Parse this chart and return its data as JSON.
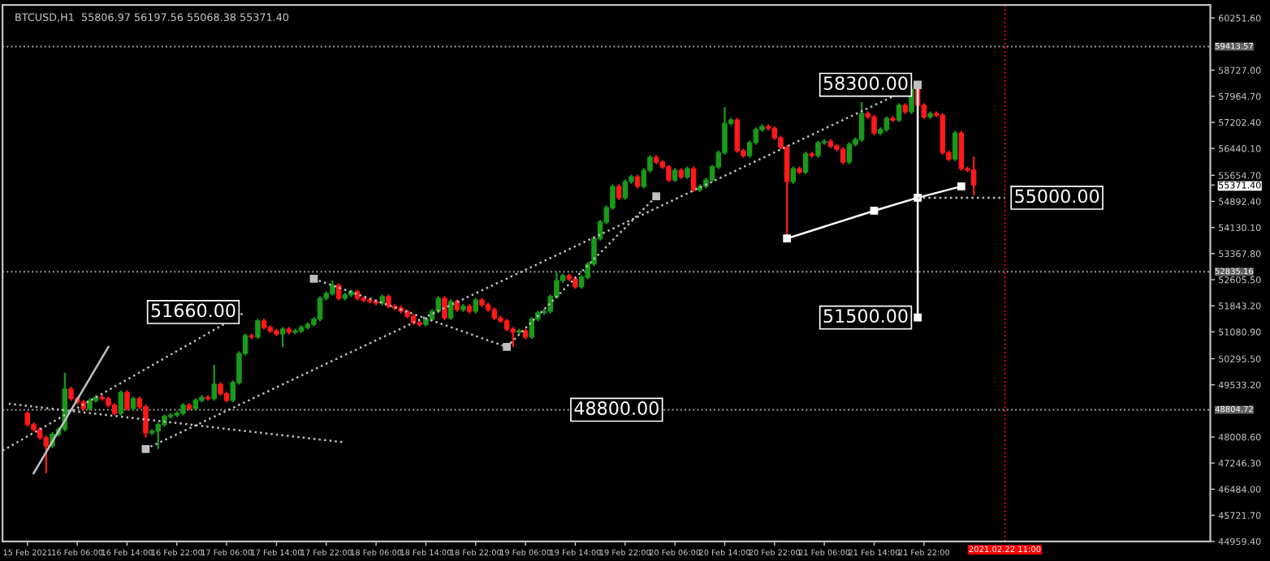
{
  "chart_data": {
    "type": "candlestick",
    "title": "BTCUSD,H1  55806.97 56197.56 55068.38 55371.40",
    "colors": [
      "#ff1a1a",
      "#ff1a1a",
      "#ff1a1a",
      "#ff1a1a",
      "#1a9a1a",
      "#1a9a1a",
      "#1a9a1a",
      "#ff1a1a",
      "#ff1a1a",
      "#ff1a1a",
      "#1a9a1a",
      "#1a9a1a",
      "#ff1a1a",
      "#ff1a1a",
      "#ff1a1a",
      "#1a9a1a",
      "#ff1a1a",
      "#1a9a1a",
      "#ff1a1a",
      "#ff1a1a",
      "#1a9a1a",
      "#1a9a1a",
      "#1a9a1a",
      "#1a9a1a",
      "#1a9a1a",
      "#1a9a1a",
      "#ff1a1a",
      "#1a9a1a",
      "#1a9a1a",
      "#ff1a1a",
      "#1a9a1a",
      "#ff1a1a",
      "#ff1a1a",
      "#1a9a1a",
      "#1a9a1a",
      "#1a9a1a",
      "#ff1a1a",
      "#1a9a1a",
      "#ff1a1a",
      "#ff1a1a",
      "#ff1a1a",
      "#1a9a1a",
      "#ff1a1a",
      "#1a9a1a",
      "#1a9a1a",
      "#1a9a1a",
      "#1a9a1a",
      "#1a9a1a",
      "#1a9a1a",
      "#1a9a1a",
      "#ff1a1a",
      "#1a9a1a",
      "#1a9a1a",
      "#ff1a1a",
      "#ff1a1a",
      "#ff1a1a",
      "#ff1a1a",
      "#1a9a1a",
      "#ff1a1a",
      "#ff1a1a",
      "#ff1a1a",
      "#ff1a1a",
      "#ff1a1a",
      "#ff1a1a",
      "#1a9a1a",
      "#1a9a1a",
      "#1a9a1a",
      "#ff1a1a",
      "#1a9a1a",
      "#ff1a1a",
      "#1a9a1a",
      "#ff1a1a",
      "#1a9a1a",
      "#ff1a1a",
      "#ff1a1a",
      "#ff1a1a",
      "#ff1a1a",
      "#ff1a1a",
      "#ff1a1a",
      "#1a9a1a",
      "#ff1a1a",
      "#1a9a1a",
      "#1a9a1a",
      "#1a9a1a",
      "#1a9a1a",
      "#1a9a1a",
      "#1a9a1a",
      "#ff1a1a",
      "#ff1a1a",
      "#1a9a1a",
      "#1a9a1a",
      "#1a9a1a",
      "#1a9a1a",
      "#1a9a1a",
      "#1a9a1a",
      "#ff1a1a",
      "#1a9a1a",
      "#1a9a1a",
      "#ff1a1a",
      "#1a9a1a",
      "#1a9a1a",
      "#ff1a1a",
      "#ff1a1a",
      "#ff1a1a",
      "#1a9a1a",
      "#ff1a1a",
      "#1a9a1a",
      "#ff1a1a",
      "#1a9a1a",
      "#1a9a1a",
      "#1a9a1a",
      "#1a9a1a",
      "#1a9a1a",
      "#1a9a1a",
      "#ff1a1a",
      "#ff1a1a",
      "#1a9a1a",
      "#1a9a1a",
      "#1a9a1a",
      "#ff1a1a",
      "#ff1a1a",
      "#ff1a1a",
      "#ff1a1a",
      "#1a9a1a",
      "#ff1a1a",
      "#1a9a1a",
      "#ff1a1a",
      "#1a9a1a",
      "#1a9a1a",
      "#ff1a1a",
      "#ff1a1a",
      "#ff1a1a",
      "#1a9a1a",
      "#1a9a1a",
      "#1a9a1a",
      "#ff1a1a",
      "#ff1a1a",
      "#1a9a1a",
      "#1a9a1a",
      "#ff1a1a",
      "#1a9a1a",
      "#ff1a1a",
      "#1a9a1a",
      "#ff1a1a",
      "#ff1a1a",
      "#1a9a1a",
      "#ff1a1a",
      "#ff1a1a",
      "#ff1a1a",
      "#1a9a1a",
      "#ff1a1a",
      "#ff1a1a",
      "#ff1a1a"
    ],
    "x": [
      "2021-02-15T22:00",
      "2021-02-15T23:00",
      "2021-02-16T00:00",
      "2021-02-16T01:00",
      "2021-02-16T02:00",
      "2021-02-16T03:00",
      "2021-02-16T04:00",
      "2021-02-16T05:00",
      "2021-02-16T06:00",
      "2021-02-16T07:00",
      "2021-02-16T08:00",
      "2021-02-16T09:00",
      "2021-02-16T10:00",
      "2021-02-16T11:00",
      "2021-02-16T12:00",
      "2021-02-16T13:00",
      "2021-02-16T14:00",
      "2021-02-16T15:00",
      "2021-02-16T16:00",
      "2021-02-16T17:00",
      "2021-02-16T18:00",
      "2021-02-16T19:00",
      "2021-02-16T20:00",
      "2021-02-16T21:00",
      "2021-02-16T22:00",
      "2021-02-16T23:00",
      "2021-02-17T00:00",
      "2021-02-17T01:00",
      "2021-02-17T02:00",
      "2021-02-17T03:00",
      "2021-02-17T04:00",
      "2021-02-17T05:00",
      "2021-02-17T06:00",
      "2021-02-17T07:00",
      "2021-02-17T08:00",
      "2021-02-17T09:00",
      "2021-02-17T10:00",
      "2021-02-17T11:00",
      "2021-02-17T12:00",
      "2021-02-17T13:00",
      "2021-02-17T14:00",
      "2021-02-17T15:00",
      "2021-02-17T16:00",
      "2021-02-17T17:00",
      "2021-02-17T18:00",
      "2021-02-17T19:00",
      "2021-02-17T20:00",
      "2021-02-17T21:00",
      "2021-02-17T22:00",
      "2021-02-17T23:00",
      "2021-02-18T00:00",
      "2021-02-18T01:00",
      "2021-02-18T02:00",
      "2021-02-18T03:00",
      "2021-02-18T04:00",
      "2021-02-18T05:00",
      "2021-02-18T06:00",
      "2021-02-18T07:00",
      "2021-02-18T08:00",
      "2021-02-18T09:00",
      "2021-02-18T10:00",
      "2021-02-18T11:00",
      "2021-02-18T12:00",
      "2021-02-18T13:00",
      "2021-02-18T14:00",
      "2021-02-18T15:00",
      "2021-02-18T16:00",
      "2021-02-18T17:00",
      "2021-02-18T18:00",
      "2021-02-18T19:00",
      "2021-02-18T20:00",
      "2021-02-18T21:00",
      "2021-02-18T22:00",
      "2021-02-18T23:00",
      "2021-02-19T00:00",
      "2021-02-19T01:00",
      "2021-02-19T02:00",
      "2021-02-19T03:00",
      "2021-02-19T04:00",
      "2021-02-19T05:00",
      "2021-02-19T06:00",
      "2021-02-19T07:00",
      "2021-02-19T08:00",
      "2021-02-19T09:00",
      "2021-02-19T10:00",
      "2021-02-19T11:00",
      "2021-02-19T12:00",
      "2021-02-19T13:00",
      "2021-02-19T14:00",
      "2021-02-19T15:00",
      "2021-02-19T16:00",
      "2021-02-19T17:00",
      "2021-02-19T18:00",
      "2021-02-19T19:00",
      "2021-02-19T20:00",
      "2021-02-19T21:00",
      "2021-02-19T22:00",
      "2021-02-19T23:00",
      "2021-02-20T00:00",
      "2021-02-20T01:00",
      "2021-02-20T02:00",
      "2021-02-20T03:00",
      "2021-02-20T04:00",
      "2021-02-20T05:00",
      "2021-02-20T06:00",
      "2021-02-20T07:00",
      "2021-02-20T08:00",
      "2021-02-20T09:00",
      "2021-02-20T10:00",
      "2021-02-20T11:00",
      "2021-02-20T12:00",
      "2021-02-20T13:00",
      "2021-02-20T14:00",
      "2021-02-20T15:00",
      "2021-02-20T16:00",
      "2021-02-20T17:00",
      "2021-02-20T18:00",
      "2021-02-20T19:00",
      "2021-02-20T20:00",
      "2021-02-20T21:00",
      "2021-02-20T22:00",
      "2021-02-20T23:00",
      "2021-02-21T00:00",
      "2021-02-21T01:00",
      "2021-02-21T02:00",
      "2021-02-21T03:00",
      "2021-02-21T04:00",
      "2021-02-21T05:00",
      "2021-02-21T06:00",
      "2021-02-21T07:00",
      "2021-02-21T08:00",
      "2021-02-21T09:00",
      "2021-02-21T10:00",
      "2021-02-21T11:00",
      "2021-02-21T12:00",
      "2021-02-21T13:00",
      "2021-02-21T14:00",
      "2021-02-21T15:00",
      "2021-02-21T16:00",
      "2021-02-21T17:00",
      "2021-02-21T18:00",
      "2021-02-21T19:00",
      "2021-02-21T20:00",
      "2021-02-21T21:00",
      "2021-02-21T22:00",
      "2021-02-21T23:00",
      "2021-02-22T00:00",
      "2021-02-22T01:00",
      "2021-02-22T02:00",
      "2021-02-22T03:00",
      "2021-02-22T04:00",
      "2021-02-22T05:00",
      "2021-02-22T06:00"
    ],
    "ohlc": [
      [
        48700,
        48760,
        48310,
        48370
      ],
      [
        48370,
        48430,
        48170,
        48230
      ],
      [
        48230,
        48290,
        47930,
        47990
      ],
      [
        47990,
        48050,
        46950,
        47750
      ],
      [
        47750,
        48150,
        47690,
        48090
      ],
      [
        48090,
        48290,
        48030,
        48230
      ],
      [
        48230,
        49890,
        48170,
        49410
      ],
      [
        49410,
        49470,
        49070,
        49130
      ],
      [
        49130,
        49190,
        48970,
        49030
      ],
      [
        49030,
        49090,
        48780,
        48840
      ],
      [
        48840,
        49140,
        48780,
        49080
      ],
      [
        49080,
        49230,
        49020,
        49170
      ],
      [
        49170,
        49230,
        49070,
        49130
      ],
      [
        49130,
        49190,
        48880,
        48940
      ],
      [
        48940,
        49000,
        48640,
        48700
      ],
      [
        48700,
        49370,
        48640,
        49310
      ],
      [
        49310,
        49370,
        48780,
        48840
      ],
      [
        48840,
        49190,
        48780,
        49130
      ],
      [
        49130,
        49190,
        48830,
        48890
      ],
      [
        48890,
        48950,
        47990,
        48130
      ],
      [
        48130,
        48240,
        48070,
        48180
      ],
      [
        48180,
        48430,
        47660,
        48370
      ],
      [
        48370,
        48670,
        48310,
        48610
      ],
      [
        48610,
        48710,
        48550,
        48650
      ],
      [
        48650,
        48760,
        48590,
        48700
      ],
      [
        48700,
        49000,
        48640,
        48940
      ],
      [
        48940,
        49000,
        48780,
        48840
      ],
      [
        48840,
        49140,
        48780,
        49080
      ],
      [
        49080,
        49230,
        49020,
        49170
      ],
      [
        49170,
        49230,
        49070,
        49130
      ],
      [
        49130,
        50120,
        49070,
        49550
      ],
      [
        49550,
        49610,
        49210,
        49270
      ],
      [
        49270,
        49330,
        49020,
        49080
      ],
      [
        49080,
        49660,
        49020,
        49600
      ],
      [
        49600,
        50510,
        49540,
        50450
      ],
      [
        50450,
        51030,
        50390,
        50970
      ],
      [
        50970,
        51030,
        50870,
        50930
      ],
      [
        50930,
        51460,
        50870,
        51400
      ],
      [
        51400,
        51460,
        51150,
        51210
      ],
      [
        51210,
        51270,
        51050,
        51110
      ],
      [
        51110,
        51170,
        50960,
        51020
      ],
      [
        51020,
        51220,
        50640,
        51160
      ],
      [
        51160,
        51220,
        51010,
        51070
      ],
      [
        51070,
        51170,
        51010,
        51110
      ],
      [
        51110,
        51270,
        51050,
        51210
      ],
      [
        51210,
        51360,
        51150,
        51300
      ],
      [
        51300,
        51510,
        51240,
        51450
      ],
      [
        51450,
        52120,
        51390,
        52060
      ],
      [
        52060,
        52260,
        52000,
        52200
      ],
      [
        52200,
        52580,
        52140,
        52440
      ],
      [
        52440,
        52500,
        52000,
        52060
      ],
      [
        52060,
        52220,
        52000,
        52160
      ],
      [
        52160,
        52310,
        52100,
        52250
      ],
      [
        52250,
        52310,
        52000,
        52060
      ],
      [
        52060,
        52120,
        51950,
        52010
      ],
      [
        52010,
        52070,
        51910,
        51970
      ],
      [
        51970,
        52030,
        51860,
        51920
      ],
      [
        51920,
        52170,
        51860,
        52110
      ],
      [
        52110,
        52170,
        51770,
        51830
      ],
      [
        51830,
        51890,
        51720,
        51780
      ],
      [
        51780,
        51840,
        51620,
        51680
      ],
      [
        51680,
        51740,
        51480,
        51540
      ],
      [
        51540,
        51600,
        51290,
        51350
      ],
      [
        51350,
        51410,
        51240,
        51300
      ],
      [
        51300,
        51510,
        51240,
        51450
      ],
      [
        51450,
        51740,
        51390,
        51680
      ],
      [
        51680,
        52120,
        51620,
        52060
      ],
      [
        52060,
        52120,
        51430,
        51490
      ],
      [
        51490,
        52030,
        51430,
        51970
      ],
      [
        51970,
        52030,
        51670,
        51730
      ],
      [
        51730,
        51890,
        51670,
        51830
      ],
      [
        51830,
        51890,
        51620,
        51680
      ],
      [
        51680,
        52070,
        51620,
        52010
      ],
      [
        52010,
        52070,
        51810,
        51870
      ],
      [
        51870,
        51930,
        51670,
        51730
      ],
      [
        51730,
        51790,
        51430,
        51490
      ],
      [
        51490,
        51550,
        51340,
        51400
      ],
      [
        51400,
        51460,
        51100,
        51160
      ],
      [
        51160,
        51220,
        50640,
        51070
      ],
      [
        51070,
        51170,
        51010,
        51110
      ],
      [
        51110,
        51170,
        50870,
        50930
      ],
      [
        50930,
        51510,
        50870,
        51450
      ],
      [
        51450,
        51700,
        51390,
        51640
      ],
      [
        51640,
        51740,
        51580,
        51680
      ],
      [
        51680,
        52170,
        51620,
        52110
      ],
      [
        52110,
        52820,
        52050,
        52580
      ],
      [
        52580,
        52780,
        52520,
        52720
      ],
      [
        52720,
        52780,
        52570,
        52630
      ],
      [
        52630,
        52690,
        52340,
        52400
      ],
      [
        52400,
        52740,
        52340,
        52680
      ],
      [
        52680,
        53120,
        52620,
        53060
      ],
      [
        53060,
        53870,
        53000,
        53810
      ],
      [
        53810,
        54350,
        53750,
        54290
      ],
      [
        54290,
        54770,
        54230,
        54710
      ],
      [
        54710,
        55390,
        54650,
        55330
      ],
      [
        55330,
        55390,
        54940,
        55000
      ],
      [
        55000,
        55530,
        54940,
        55470
      ],
      [
        55470,
        55670,
        55410,
        55610
      ],
      [
        55610,
        55670,
        55270,
        55330
      ],
      [
        55330,
        55860,
        55270,
        55800
      ],
      [
        55800,
        56240,
        55740,
        56180
      ],
      [
        56180,
        56240,
        55980,
        56040
      ],
      [
        56040,
        56100,
        55840,
        55900
      ],
      [
        55900,
        55960,
        55460,
        55520
      ],
      [
        55520,
        55860,
        55460,
        55800
      ],
      [
        55800,
        55860,
        55550,
        55610
      ],
      [
        55610,
        55910,
        55550,
        55850
      ],
      [
        55850,
        55910,
        55170,
        55230
      ],
      [
        55230,
        55390,
        55170,
        55330
      ],
      [
        55330,
        55580,
        55270,
        55520
      ],
      [
        55520,
        55960,
        55460,
        55900
      ],
      [
        55900,
        56380,
        55840,
        56320
      ],
      [
        56320,
        57650,
        56260,
        57170
      ],
      [
        57170,
        57330,
        57110,
        57270
      ],
      [
        57270,
        57330,
        56310,
        56370
      ],
      [
        56370,
        56430,
        56170,
        56230
      ],
      [
        56230,
        56670,
        56170,
        56610
      ],
      [
        56610,
        57050,
        56550,
        56990
      ],
      [
        56990,
        57140,
        56930,
        57080
      ],
      [
        57080,
        57140,
        56970,
        57030
      ],
      [
        57030,
        57090,
        56690,
        56750
      ],
      [
        56750,
        56810,
        56410,
        56470
      ],
      [
        56470,
        56530,
        53810,
        55470
      ],
      [
        55470,
        55910,
        55410,
        55850
      ],
      [
        55850,
        55910,
        55690,
        55750
      ],
      [
        55750,
        56340,
        55690,
        56280
      ],
      [
        56280,
        56340,
        56170,
        56230
      ],
      [
        56230,
        56670,
        56170,
        56610
      ],
      [
        56610,
        56710,
        56550,
        56650
      ],
      [
        56650,
        56710,
        56450,
        56510
      ],
      [
        56510,
        56570,
        56360,
        56420
      ],
      [
        56420,
        56480,
        55980,
        56040
      ],
      [
        56040,
        56620,
        55980,
        56560
      ],
      [
        56560,
        56760,
        56500,
        56700
      ],
      [
        56700,
        57790,
        56640,
        57460
      ],
      [
        57460,
        57520,
        57300,
        57360
      ],
      [
        57360,
        57420,
        56830,
        56890
      ],
      [
        56890,
        57050,
        56830,
        56990
      ],
      [
        56990,
        57380,
        56930,
        57320
      ],
      [
        57320,
        57380,
        57210,
        57270
      ],
      [
        57270,
        57760,
        57210,
        57700
      ],
      [
        57700,
        57760,
        57450,
        57510
      ],
      [
        57510,
        58310,
        57450,
        58170
      ],
      [
        58170,
        58230,
        57640,
        57700
      ],
      [
        57700,
        57760,
        57300,
        57360
      ],
      [
        57360,
        57520,
        57300,
        57460
      ],
      [
        57460,
        57520,
        57350,
        57410
      ],
      [
        57410,
        57470,
        56260,
        56320
      ],
      [
        56320,
        56380,
        56070,
        56130
      ],
      [
        56130,
        56950,
        56070,
        56890
      ],
      [
        56890,
        56950,
        55790,
        55850
      ],
      [
        55850,
        55910,
        55750,
        55810
      ],
      [
        55806.97,
        56197.56,
        55068.38,
        55371.4
      ]
    ],
    "series": [
      {
        "type": "line",
        "x": [
          "2021-02-21T00:00",
          "2021-02-21T14:00",
          "2021-02-21T21:00",
          "2021-02-22T04:00"
        ],
        "values": [
          53810,
          54620,
          55000,
          55330
        ],
        "color": "#ffffff",
        "line_style": "solid",
        "marker": "square"
      },
      {
        "type": "line",
        "x": [
          "2021-02-21T21:00",
          "2021-02-21T21:00"
        ],
        "values": [
          58300,
          51500
        ],
        "color": "#ffffff",
        "line_style": "solid",
        "marker": "square"
      },
      {
        "type": "line",
        "x": [
          "2021-02-21T21:00",
          "2021-02-22T11:00"
        ],
        "values": [
          55000,
          55000
        ],
        "color": "#bfbfbf",
        "line_style": "dotted",
        "marker": "none"
      },
      {
        "type": "line",
        "x": [
          "2021-02-15T18:00",
          "2021-02-17T09:00"
        ],
        "values": [
          47610,
          51660
        ],
        "color": "#bfbfbf",
        "line_style": "dotted",
        "marker": "none"
      },
      {
        "type": "line",
        "x": [
          "2021-02-16T17:00",
          "2021-02-21T21:00"
        ],
        "values": [
          47660,
          58300
        ],
        "color": "#bfbfbf",
        "line_style": "dotted",
        "marker": "square"
      },
      {
        "type": "line",
        "x": [
          "2021-02-15T19:00",
          "2021-02-18T01:00"
        ],
        "values": [
          48980,
          47850
        ],
        "color": "#bfbfbf",
        "line_style": "dotted",
        "marker": "none"
      },
      {
        "type": "line",
        "x": [
          "2021-02-15T23:00",
          "2021-02-16T11:00"
        ],
        "values": [
          46950,
          50640
        ],
        "color": "#bfbfbf",
        "line_style": "solid",
        "marker": "none"
      },
      {
        "type": "line",
        "x": [
          "2021-02-17T20:00",
          "2021-02-19T03:00",
          "2021-02-20T03:00"
        ],
        "values": [
          52630,
          50640,
          55040
        ],
        "color": "#bfbfbf",
        "line_style": "dotted",
        "marker": "square"
      }
    ],
    "annotations": [
      {
        "text": "58300.00",
        "x": "2021-02-21T21:00",
        "y": 58300
      },
      {
        "text": "55000.00",
        "x": "2021-02-22T11:00",
        "y": 55000
      },
      {
        "text": "51500.00",
        "x": "2021-02-21T21:00",
        "y": 51500
      },
      {
        "text": "51660.00",
        "x": "2021-02-17T09:00",
        "y": 51660
      },
      {
        "text": "48800.00",
        "x": "2021-02-20T05:00",
        "y": 48804.72
      }
    ],
    "ref_lines": [
      {
        "axis": "y",
        "value": 59413.57,
        "label": "59413.57",
        "color": "#a0a0a0",
        "line_style": "dotted"
      },
      {
        "axis": "y",
        "value": 52835.16,
        "label": "52835.16",
        "color": "#a0a0a0",
        "line_style": "dotted"
      },
      {
        "axis": "y",
        "value": 48804.72,
        "label": "48804.72",
        "color": "#a0a0a0",
        "line_style": "dotted"
      },
      {
        "axis": "x",
        "value": "2021-02-22T11:00",
        "label": "2021.02.22 11:00",
        "color": "#ff0000",
        "line_style": "dotted"
      }
    ],
    "xlim": [
      "2021-02-15T18:00",
      "2021-02-23T20:00"
    ],
    "xticks": [
      {
        "value": "2021-02-15T22:00",
        "label": "15 Feb 2021"
      },
      {
        "value": "2021-02-16T06:00",
        "label": "16 Feb 06:00"
      },
      {
        "value": "2021-02-16T14:00",
        "label": "16 Feb 14:00"
      },
      {
        "value": "2021-02-16T22:00",
        "label": "16 Feb 22:00"
      },
      {
        "value": "2021-02-17T06:00",
        "label": "17 Feb 06:00"
      },
      {
        "value": "2021-02-17T14:00",
        "label": "17 Feb 14:00"
      },
      {
        "value": "2021-02-17T22:00",
        "label": "17 Feb 22:00"
      },
      {
        "value": "2021-02-18T06:00",
        "label": "18 Feb 06:00"
      },
      {
        "value": "2021-02-18T14:00",
        "label": "18 Feb 14:00"
      },
      {
        "value": "2021-02-18T22:00",
        "label": "18 Feb 22:00"
      },
      {
        "value": "2021-02-19T06:00",
        "label": "19 Feb 06:00"
      },
      {
        "value": "2021-02-19T14:00",
        "label": "19 Feb 14:00"
      },
      {
        "value": "2021-02-19T22:00",
        "label": "19 Feb 22:00"
      },
      {
        "value": "2021-02-20T06:00",
        "label": "20 Feb 06:00"
      },
      {
        "value": "2021-02-20T14:00",
        "label": "20 Feb 14:00"
      },
      {
        "value": "2021-02-20T22:00",
        "label": "20 Feb 22:00"
      },
      {
        "value": "2021-02-21T06:00",
        "label": "21 Feb 06:00"
      },
      {
        "value": "2021-02-21T14:00",
        "label": "21 Feb 14:00"
      },
      {
        "value": "2021-02-21T22:00",
        "label": "21 Feb 22:00"
      }
    ],
    "ylim": [
      44959.4,
      60630
    ],
    "yticks": [
      {
        "value": 60251.6,
        "label": "60251.60"
      },
      {
        "value": 58727.0,
        "label": "58727.00"
      },
      {
        "value": 57964.7,
        "label": "57964.70"
      },
      {
        "value": 57202.4,
        "label": "57202.40"
      },
      {
        "value": 56440.1,
        "label": "56440.10"
      },
      {
        "value": 55654.7,
        "label": "55654.70"
      },
      {
        "value": 55371.4,
        "label": "55371.40"
      },
      {
        "value": 54892.4,
        "label": "54892.40"
      },
      {
        "value": 54130.1,
        "label": "54130.10"
      },
      {
        "value": 53367.8,
        "label": "53367.80"
      },
      {
        "value": 52605.5,
        "label": "52605.50"
      },
      {
        "value": 51843.2,
        "label": "51843.20"
      },
      {
        "value": 51080.9,
        "label": "51080.90"
      },
      {
        "value": 50295.5,
        "label": "50295.50"
      },
      {
        "value": 49533.2,
        "label": "49533.20"
      },
      {
        "value": 48008.6,
        "label": "48008.60"
      },
      {
        "value": 47246.3,
        "label": "47246.30"
      },
      {
        "value": 46484.0,
        "label": "46484.00"
      },
      {
        "value": 45721.7,
        "label": "45721.70"
      },
      {
        "value": 44959.4,
        "label": "44959.40"
      }
    ],
    "grid": false,
    "legend": false
  }
}
